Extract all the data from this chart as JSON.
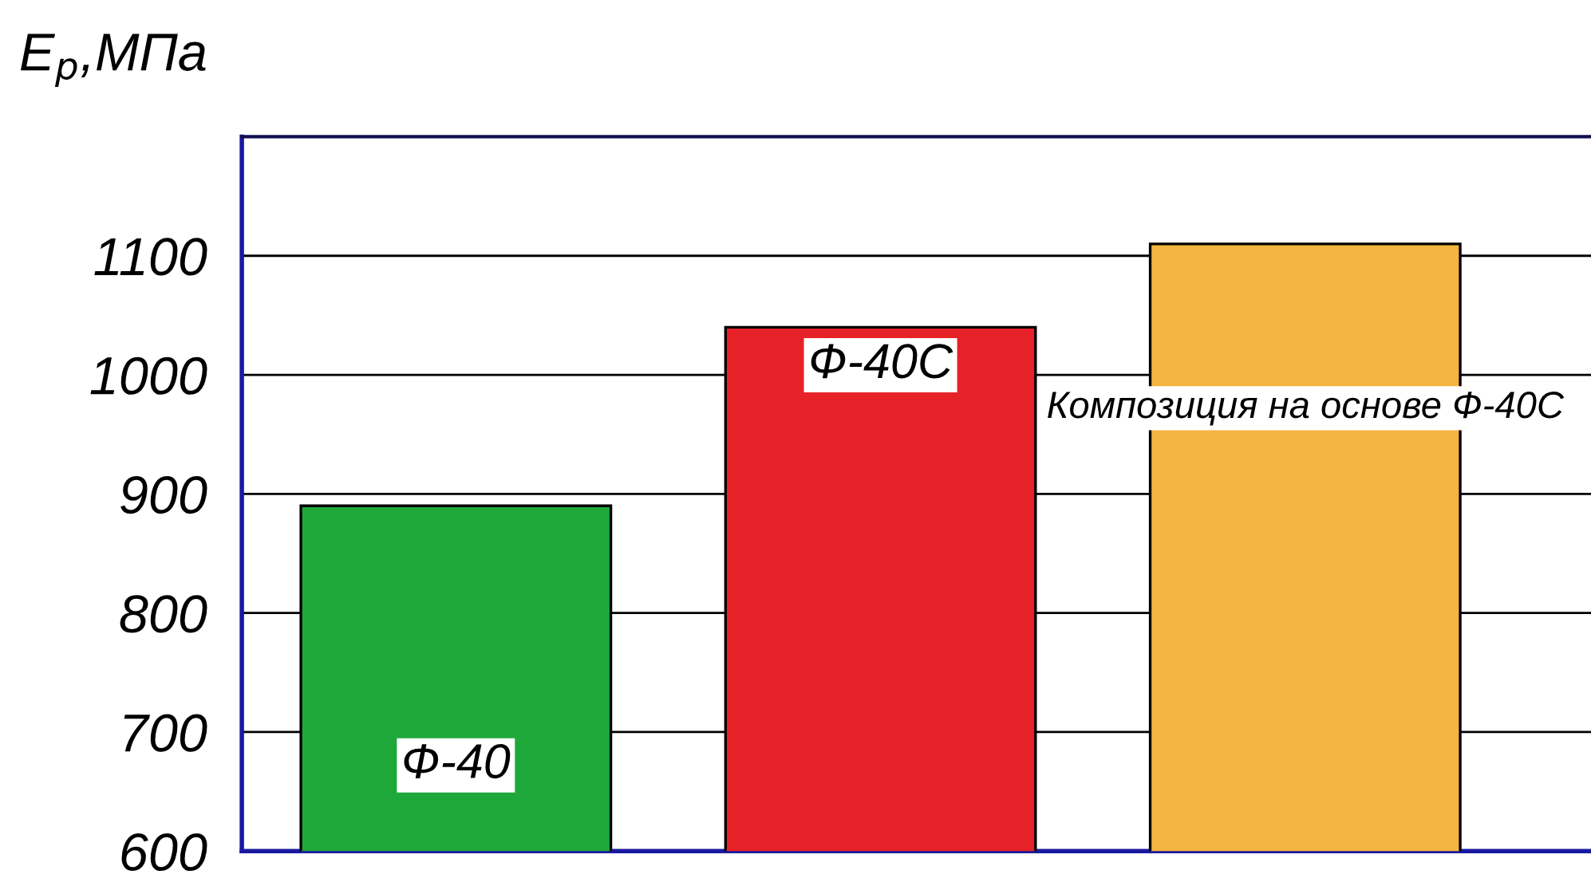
{
  "chart_data": {
    "type": "bar",
    "ylabel": "E$_{p}$,МПа",
    "categories": [
      "Ф-40",
      "Ф-40С",
      "Композиция на основе Ф-40С"
    ],
    "values": [
      890,
      1040,
      1110
    ],
    "colors": [
      "#1fa83a",
      "#e62228",
      "#f4b440"
    ],
    "ylim": [
      600,
      1200
    ],
    "yticks": [
      600,
      700,
      800,
      900,
      1000,
      1100
    ],
    "grid": "y",
    "tick_labels": "y"
  }
}
